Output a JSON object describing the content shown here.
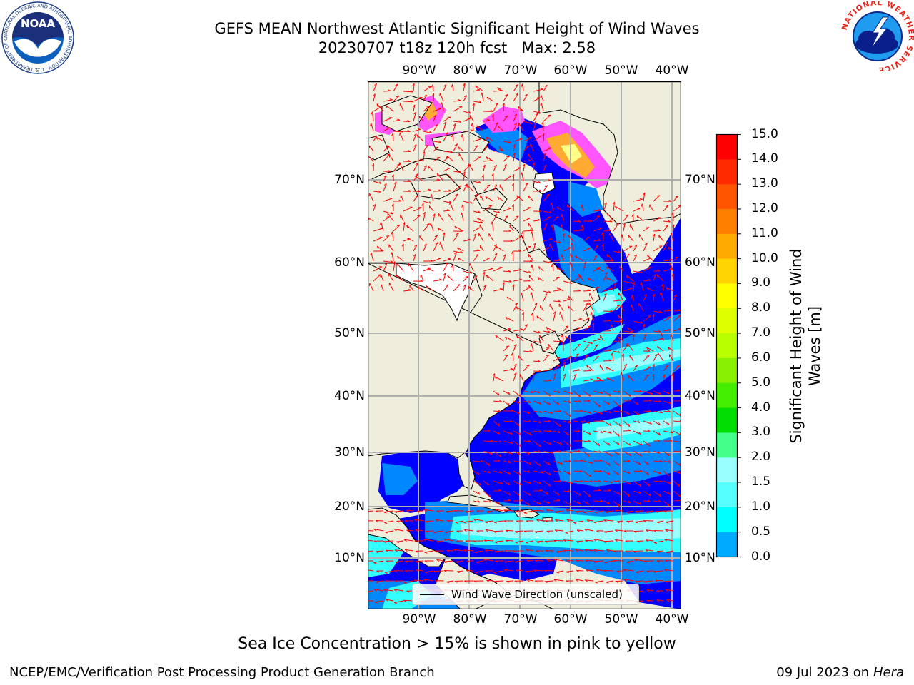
{
  "header": {
    "title_line1": "GEFS MEAN Northwest Atlantic Significant Height of Wind Waves",
    "title_line2": "20230707 t18z 120h fcst   Max: 2.58"
  },
  "logos": {
    "noaa_text": "NOAA",
    "noaa_ring": "NATIONAL OCEANIC AND ATMOSPHERIC ADMINISTRATION · U.S. DEPARTMENT OF COMMERCE",
    "nws_ring": "NATIONAL WEATHER SERVICE"
  },
  "map": {
    "lon_labels": [
      "90°W",
      "80°W",
      "70°W",
      "60°W",
      "50°W",
      "40°W"
    ],
    "lat_labels": [
      "70°N",
      "60°N",
      "50°N",
      "40°N",
      "30°N",
      "20°N",
      "10°N"
    ],
    "legend_label": "Wind Wave Direction (unscaled)",
    "colors": {
      "land": "#efeedc",
      "ice": "#ff55ff",
      "ice_edge": "#ffaa33",
      "grid": "#b0b0b0",
      "vector": "#ff0000"
    }
  },
  "colorbar": {
    "title_line1": "Significant Height of Wind",
    "title_line2": "Waves [m]",
    "ticks": [
      "15.0",
      "14.0",
      "13.0",
      "12.0",
      "11.0",
      "10.0",
      "9.0",
      "8.0",
      "7.0",
      "6.0",
      "5.0",
      "4.0",
      "3.0",
      "2.0",
      "1.5",
      "1.0",
      "0.5",
      "0.0"
    ],
    "colors": [
      "#ff0000",
      "#ff2a00",
      "#ff5500",
      "#ff7f00",
      "#ffaa00",
      "#ffd400",
      "#ffff00",
      "#ddff00",
      "#b8ff00",
      "#88f000",
      "#44ee00",
      "#00dd00",
      "#44ff88",
      "#99ffff",
      "#55ffff",
      "#00ffff",
      "#00aaff",
      "#0000ff"
    ]
  },
  "chart_data": {
    "type": "heatmap",
    "title": "GEFS MEAN Northwest Atlantic Significant Height of Wind Waves",
    "subtitle": "20230707 t18z 120h fcst   Max: 2.58",
    "colorbar_label": "Significant Height of Wind Waves [m]",
    "colorbar_levels": [
      0.0,
      0.5,
      1.0,
      1.5,
      2.0,
      3.0,
      4.0,
      5.0,
      6.0,
      7.0,
      8.0,
      9.0,
      10.0,
      11.0,
      12.0,
      13.0,
      14.0,
      15.0
    ],
    "max_value": 2.58,
    "lon_range": [
      -100,
      -38
    ],
    "lat_range": [
      0,
      82
    ],
    "legend": "Wind Wave Direction (unscaled)"
  },
  "notes": {
    "ice_note": "Sea Ice Concentration > 15% is shown in pink to yellow"
  },
  "footer": {
    "left": "NCEP/EMC/Verification Post Processing Product Generation Branch",
    "right_date": "09 Jul 2023 on ",
    "right_host": "Hera"
  }
}
